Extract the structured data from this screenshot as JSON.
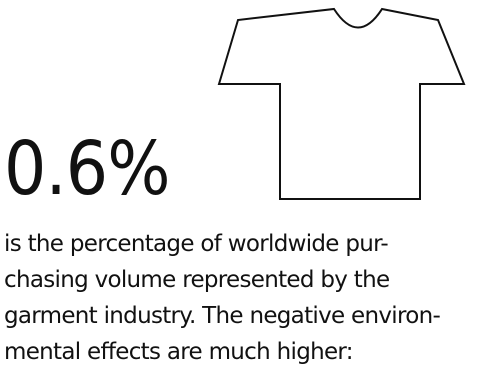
{
  "statistic": {
    "value": "0.6%"
  },
  "illustration": {
    "icon": "t-shirt-icon",
    "stroke_color": "#111111"
  },
  "description": {
    "lines": [
      "is the percentage of worldwide pur-",
      "chasing volume represented by the",
      "garment industry. The negative environ-",
      "mental effects are much higher:"
    ]
  }
}
